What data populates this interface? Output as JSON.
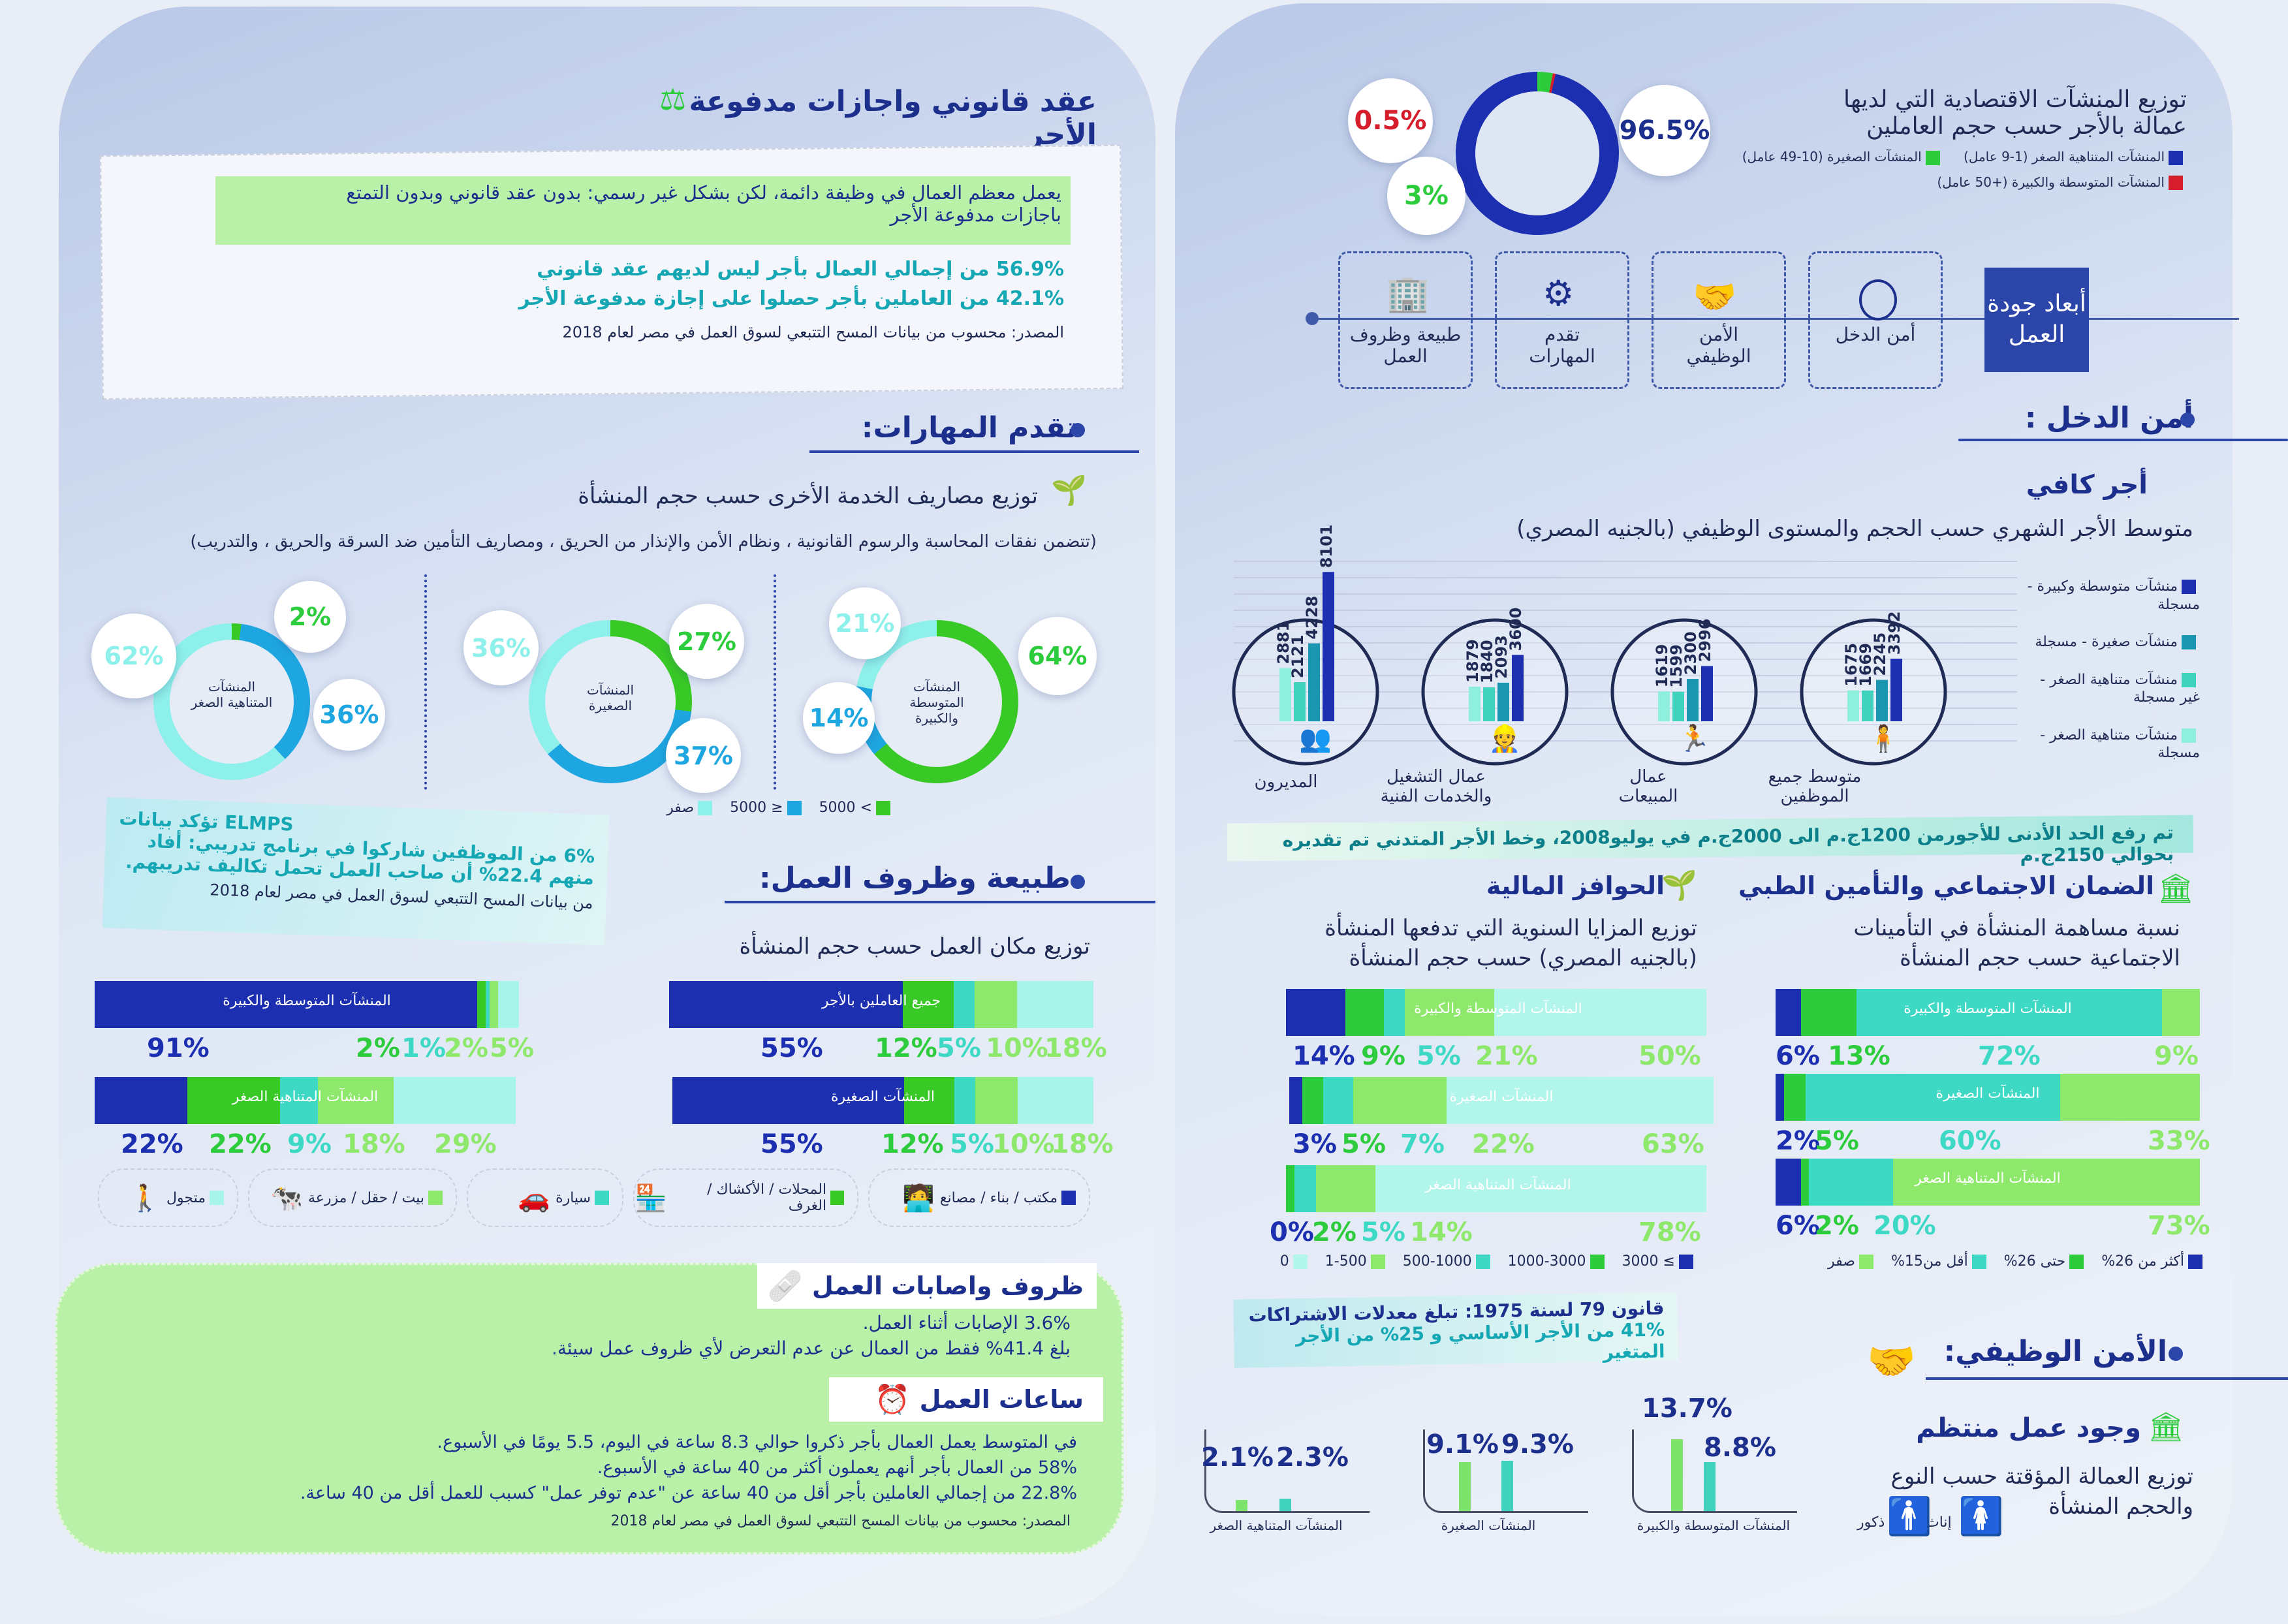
{
  "right": {
    "dist": {
      "title1": "توزيع المنشآت الاقتصادية التي لديها",
      "title2": "عمالة بالأجر حسب حجم العاملين",
      "leg_micro": "المنشآت المتناهية الصغر (1-9 عامل)",
      "leg_small": "المنشآت الصغيرة (10-49 عامل)",
      "leg_med": "المنشآت المتوسطة والكبيرة (+50 عامل)",
      "p_micro": "96.5%",
      "p_small": "3%",
      "p_med": "0.5%",
      "colors": {
        "micro": "#1c2fb0",
        "small": "#2ccc3c",
        "med": "#d61d2c"
      }
    },
    "dims": {
      "title": "أبعاد جودة العمل",
      "d1": "أمن الدخل",
      "d2": "الأمن الوظيفي",
      "d3": "تقدم المهارات",
      "d4": "طبيعة وظروف العمل"
    },
    "income": {
      "heading": "أمن الدخل :",
      "sub": "أجر كافي",
      "chart_title": "متوسط الأجر الشهري حسب الحجم والمستوى الوظيفي (بالجنيه المصري)",
      "note": "تم رفع الحد الأدنى للأجورمن 1200ج.م الى 2000ج.م في يوليو2008، وخط الأجر المتدني تم تقديره بحوالي 2150ج.م"
    },
    "social": {
      "heading": "الضمان الاجتماعي والتأمين الطبي",
      "sub1": "نسبة مساهمة المنشأة في التأمينات",
      "sub2": "الاجتماعية حسب حجم المنشأة",
      "bar1": "المنشآت المتوسطة والكبيرة",
      "bar2": "المنشآت الصغيرة",
      "bar3": "المنشآت المتناهية الصغر",
      "b1": [
        "6%",
        "13%",
        "72%",
        "9%"
      ],
      "b2": [
        "2%",
        "5%",
        "60%",
        "33%"
      ],
      "b3": [
        "6%",
        "2%",
        "20%",
        "73%"
      ],
      "leg": [
        "أكثر من 26%",
        "حتى 26%",
        "أقل من15%",
        "صفر"
      ]
    },
    "financial": {
      "heading": "الحوافز المالية",
      "sub1": "توزيع المزايا السنوية التي تدفعها المنشأة",
      "sub2": "(بالجنيه المصري) حسب حجم المنشأة",
      "bar1": "المنشآت المتوسطة والكبيرة",
      "bar2": "المنشآت الصغيرة",
      "bar3": "المنشآت المتناهية الصغر",
      "b1": [
        "14%",
        "9%",
        "5%",
        "21%",
        "50%"
      ],
      "b2": [
        "3%",
        "5%",
        "7%",
        "22%",
        "63%"
      ],
      "b3": [
        "0%",
        "2%",
        "5%",
        "14%",
        "78%"
      ],
      "leg": [
        "≥ 3000",
        "1000-3000",
        "500-1000",
        "1-500",
        "0"
      ]
    },
    "law": {
      "l1": "قانون 79 لسنة 1975: تبلغ معدلات الاشتراكات",
      "l2": "41% من الأجر الأساسي و 25% من الأجر المتغير"
    },
    "jobsec": {
      "heading": "الأمن الوظيفي:",
      "sub": "وجود عمل منتظم",
      "t1": "توزيع العمالة المؤقتة حسب النوع",
      "t2": "والحجم المنشأة",
      "female": "إناث",
      "male": "ذكور",
      "g1": {
        "label": "المنشآت المتوسطة والكبيرة",
        "a": "13.7%",
        "b": "8.8%"
      },
      "g2": {
        "label": "المنشآت الصغيرة",
        "a": "9.1%",
        "b": "9.3%"
      },
      "g3": {
        "label": "المنشآت المتناهية الصغر",
        "a": "2.1%",
        "b": "2.3%"
      }
    }
  },
  "left": {
    "contract": {
      "heading": "عقد قانوني واجازات مدفوعة الأجر",
      "hl1": "يعمل معظم العمال في وظيفة دائمة، لكن بشكل غير رسمي: بدون عقد قانوني وبدون التمتع",
      "hl2": "باجازات مدفوعة الأجر",
      "s1": "56.9% من إجمالي العمال بأجر ليس لديهم عقد قانوني",
      "s2": "42.1% من العاملين بأجر حصلوا على إجازة مدفوعة الأجر",
      "src": "المصدر: محسوب من بيانات المسح التتبعي لسوق العمل في مصر لعام 2018"
    },
    "skills": {
      "heading": "تقدم المهارات:",
      "sub": "توزيع مصاريف الخدمة الأخرى حسب حجم المنشأة",
      "paren": "(تتضمن نفقات المحاسبة والرسوم القانونية ، ونظام الأمن والإنذار من الحريق ، ومصاريف التأمين ضد السرقة والحريق ، والتدريب)",
      "d1": {
        "label": "المنشآت المتوسطة والكبيرة",
        "a": "21%",
        "b": "64%",
        "c": "14%"
      },
      "d2": {
        "label": "المنشآت الصغيرة",
        "a": "36%",
        "b": "27%",
        "c": "37%"
      },
      "d3": {
        "label": "المنشآت المتناهية الصغر",
        "a": "62%",
        "b": "2%",
        "c": "36%"
      },
      "leg": [
        "> 5000",
        "≤ 5000",
        "صفر"
      ],
      "elmps1": "6% من الموظفين شاركوا في برنامج تدريبي: أفاد منهم 22.4% أن صاحب العمل تحمل تكاليف تدريبهم.",
      "elmps_tag": "ELMPS تؤكد بيانات",
      "elmps2": "من بيانات المسح التتبعي لسوق العمل في مصر لعام 2018"
    },
    "nature": {
      "heading": "طبيعة وظروف العمل:",
      "sub": "توزيع مكان العمل حسب حجم المنشأة",
      "bars": [
        {
          "label": "جميع العاملين بالأجر",
          "vals": [
            "55%",
            "12%",
            "5%",
            "10%",
            "18%"
          ]
        },
        {
          "label": "المنشآت المتوسطة والكبيرة",
          "vals": [
            "91%",
            "2%",
            "1%",
            "2%",
            "5%"
          ]
        },
        {
          "label": "المنشآت الصغيرة",
          "vals": [
            "55%",
            "12%",
            "5%",
            "10%",
            "18%"
          ]
        },
        {
          "label": "المنشآت المتناهية الصغر",
          "vals": [
            "22%",
            "22%",
            "9%",
            "18%",
            "29%"
          ]
        }
      ],
      "leg": [
        "مكتب / بناء / مصانع",
        "المحلات / الأكشاك / الغرف",
        "سيارة",
        "بيت / حقل / مزرعة",
        "متجول"
      ]
    },
    "cond": {
      "heading": "ظروف واصابات العمل",
      "c1": "3.6% الإصابات أثناء العمل.",
      "c2": "بلغ 41.4% فقط من العمال عن عدم التعرض لأي ظروف عمل سيئة.",
      "hours_heading": "ساعات العمل",
      "h1": "في المتوسط يعمل العمال بأجر ذكروا حوالي 8.3 ساعة في اليوم، 5.5 يومًا في الأسبوع.",
      "h2": "58% من العمال بأجر أنهم يعملون أكثر من 40 ساعة في الأسبوع.",
      "h3": "22.8% من إجمالي العاملين بأجر أقل من 40 ساعة عن \"عدم توفر عمل\" كسبب للعمل أقل من 40 ساعة.",
      "src": "المصدر: محسوب من بيانات المسح التتبعي لسوق العمل في مصر لعام 2018"
    }
  },
  "chart_data": {
    "type": "bar",
    "title": "متوسط الأجر الشهري حسب الحجم والمستوى الوظيفي (بالجنيه المصري)",
    "categories": [
      "المديرون",
      "عمال التشغيل والخدمات الفنية",
      "عمال المبيعات",
      "متوسط جميع الموظفين"
    ],
    "series": [
      {
        "name": "منشآت متناهية الصغر - مسجلة",
        "values": [
          2881,
          1879,
          1619,
          1675
        ]
      },
      {
        "name": "منشآت متناهية الصغر - غير مسجلة",
        "values": [
          2121,
          1840,
          1599,
          1669
        ]
      },
      {
        "name": "منشآت صغيرة - مسجلة",
        "values": [
          4228,
          2093,
          2300,
          2245
        ]
      },
      {
        "name": "منشآت متوسطة وكبيرة - مسجلة",
        "values": [
          8101,
          3600,
          2996,
          3392
        ]
      }
    ],
    "colors": [
      "#8ef0dc",
      "#3fd3bd",
      "#1a96b0",
      "#1c2fb0"
    ]
  }
}
